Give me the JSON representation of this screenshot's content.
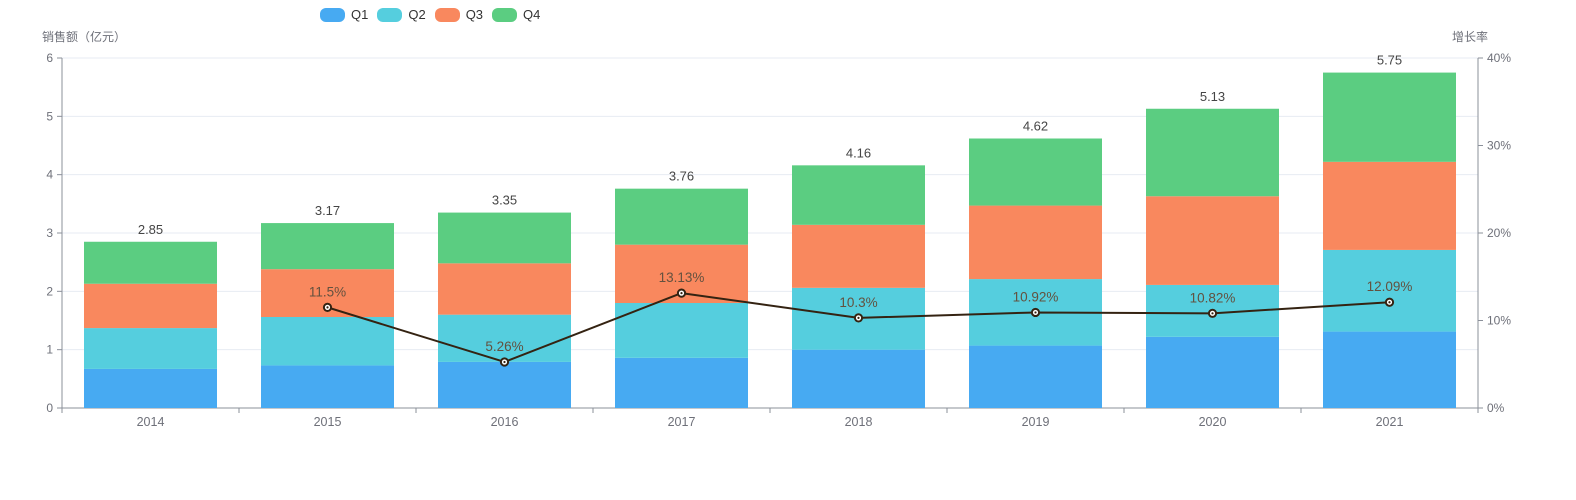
{
  "chart_data": {
    "type": "bar",
    "subtype": "stacked-bar-with-line",
    "categories": [
      "2014",
      "2015",
      "2016",
      "2017",
      "2018",
      "2019",
      "2020",
      "2021"
    ],
    "series": [
      {
        "name": "Q1",
        "type": "bar",
        "stack": true,
        "color": "#47aaf2",
        "values": [
          0.67,
          0.73,
          0.79,
          0.86,
          1.0,
          1.07,
          1.22,
          1.31
        ]
      },
      {
        "name": "Q2",
        "type": "bar",
        "stack": true,
        "color": "#55cede",
        "values": [
          0.7,
          0.83,
          0.81,
          0.94,
          1.06,
          1.14,
          0.89,
          1.4
        ]
      },
      {
        "name": "Q3",
        "type": "bar",
        "stack": true,
        "color": "#f9885e",
        "values": [
          0.76,
          0.82,
          0.88,
          1.0,
          1.08,
          1.26,
          1.52,
          1.51
        ]
      },
      {
        "name": "Q4",
        "type": "bar",
        "stack": true,
        "color": "#5bcd81",
        "values": [
          0.72,
          0.79,
          0.87,
          0.96,
          1.02,
          1.15,
          1.5,
          1.53
        ]
      }
    ],
    "stack_totals": [
      "2.85",
      "3.17",
      "3.35",
      "3.76",
      "4.16",
      "4.62",
      "5.13",
      "5.75"
    ],
    "line_series": {
      "name": "增长率",
      "type": "line",
      "color": "#342312",
      "values": [
        null,
        11.5,
        5.26,
        13.13,
        10.3,
        10.92,
        10.82,
        12.09
      ],
      "point_labels": [
        "",
        "11.5%",
        "5.26%",
        "13.13%",
        "10.3%",
        "10.92%",
        "10.82%",
        "12.09%"
      ]
    },
    "left_axis": {
      "title": "销售额（亿元）",
      "min": 0,
      "max": 6,
      "ticks": [
        "0",
        "1",
        "2",
        "3",
        "4",
        "5",
        "6"
      ]
    },
    "right_axis": {
      "title": "增长率",
      "min": 0,
      "max": 40,
      "ticks": [
        "0%",
        "10%",
        "20%",
        "30%",
        "40%"
      ]
    },
    "legend": {
      "items": [
        "Q1",
        "Q2",
        "Q3",
        "Q4"
      ],
      "colors": [
        "#47aaf2",
        "#55cede",
        "#f9885e",
        "#5bcd81"
      ]
    },
    "grid": true,
    "legend_position": "top"
  },
  "style": {
    "total_label_color": "#454545",
    "percent_label_color": "#63513f",
    "axis_text_color": "#6e7079",
    "axis_line_color": "#8b909a",
    "grid_line_color": "#e7ebf3",
    "background": "#ffffff"
  }
}
